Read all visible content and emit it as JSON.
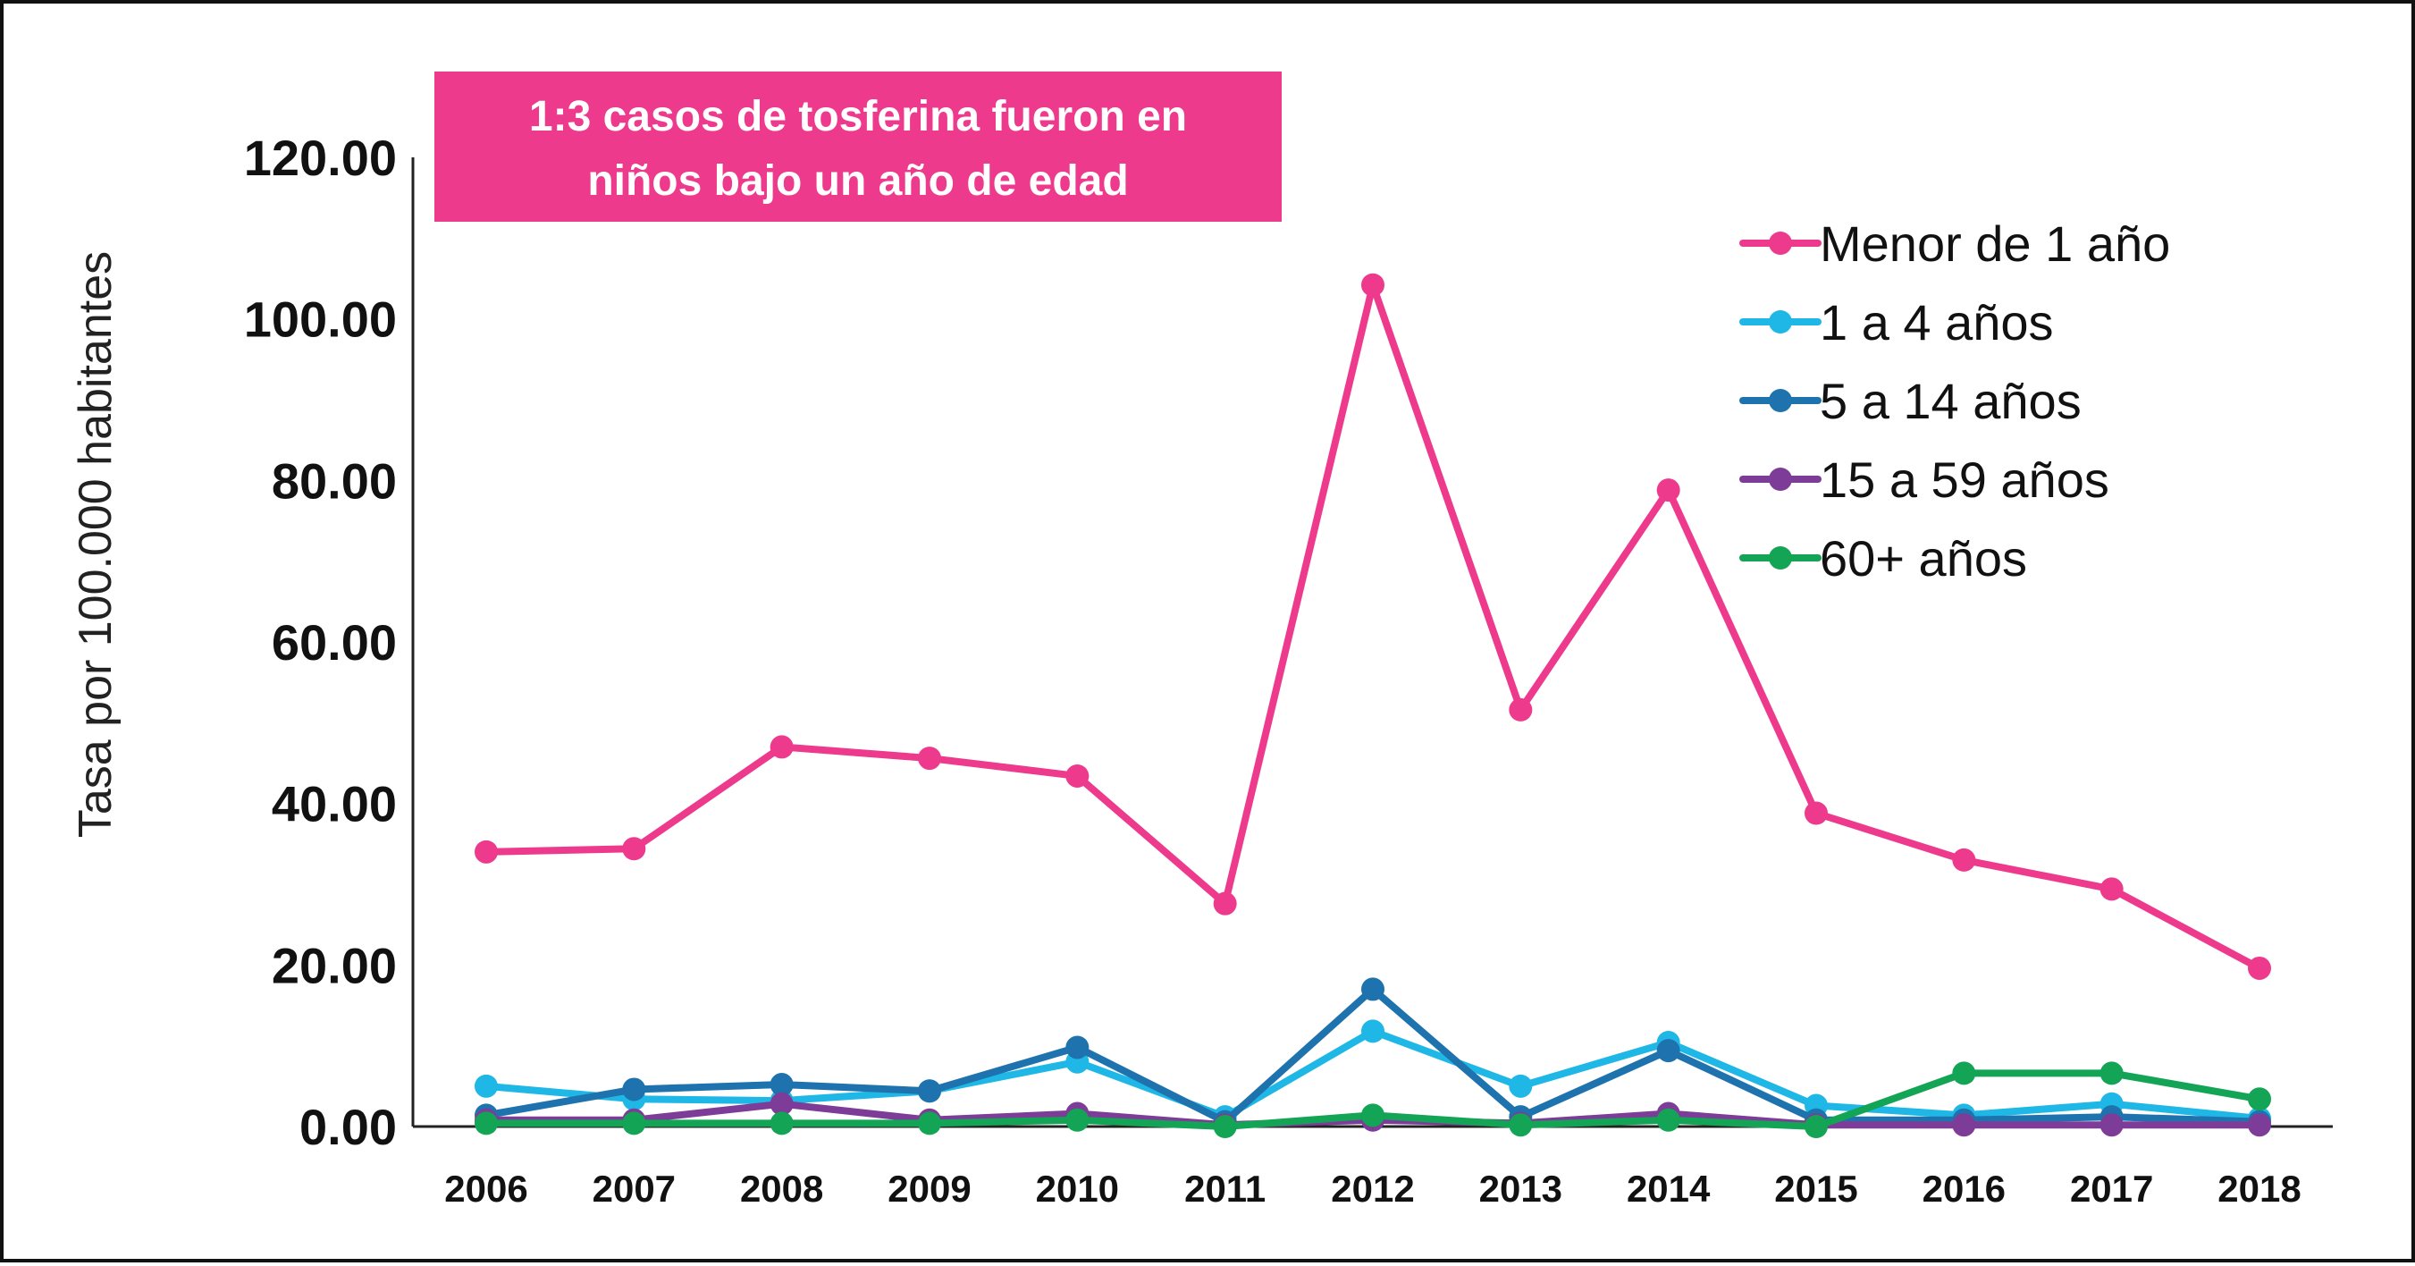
{
  "chart_data": {
    "type": "line",
    "title": "",
    "annotation": {
      "lines": [
        "1:3 casos de tosferina fueron en",
        "niños bajo un año de edad"
      ],
      "background_color": "#EE3A8C"
    },
    "ylabel": "Tasa por 100.000 habitantes",
    "xlabel": "",
    "ylim": [
      0,
      120
    ],
    "y_ticks": [
      "0.00",
      "20.00",
      "40.00",
      "60.00",
      "80.00",
      "100.00",
      "120.00"
    ],
    "grid": false,
    "legend_position": "top-right",
    "x": [
      "2006",
      "2007",
      "2008",
      "2009",
      "2010",
      "2011",
      "2012",
      "2013",
      "2014",
      "2015",
      "2016",
      "2017",
      "2018"
    ],
    "series": [
      {
        "name": "Menor de 1 año",
        "color": "#EE3A8C",
        "values": [
          34.0,
          34.4,
          47.0,
          45.6,
          43.4,
          27.6,
          104.2,
          51.6,
          78.8,
          38.8,
          33.0,
          29.4,
          19.6
        ]
      },
      {
        "name": "1 a 4 años",
        "color": "#1EB7E6",
        "values": [
          5.0,
          3.4,
          3.2,
          4.4,
          8.0,
          1.2,
          11.8,
          5.0,
          10.4,
          2.6,
          1.4,
          2.8,
          1.0
        ]
      },
      {
        "name": "5 a 14 años",
        "color": "#1E73AE",
        "values": [
          1.4,
          4.6,
          5.2,
          4.4,
          9.8,
          0.6,
          17.0,
          1.2,
          9.4,
          0.8,
          0.8,
          1.2,
          0.6
        ]
      },
      {
        "name": "15 a 59 años",
        "color": "#7D3C98",
        "values": [
          0.8,
          0.8,
          2.8,
          0.8,
          1.6,
          0.2,
          0.8,
          0.4,
          1.6,
          0.2,
          0.2,
          0.2,
          0.2
        ]
      },
      {
        "name": "60+ años",
        "color": "#13A455",
        "values": [
          0.4,
          0.4,
          0.4,
          0.4,
          0.8,
          0.0,
          1.4,
          0.2,
          0.8,
          0.0,
          6.6,
          6.6,
          3.4
        ]
      }
    ]
  }
}
